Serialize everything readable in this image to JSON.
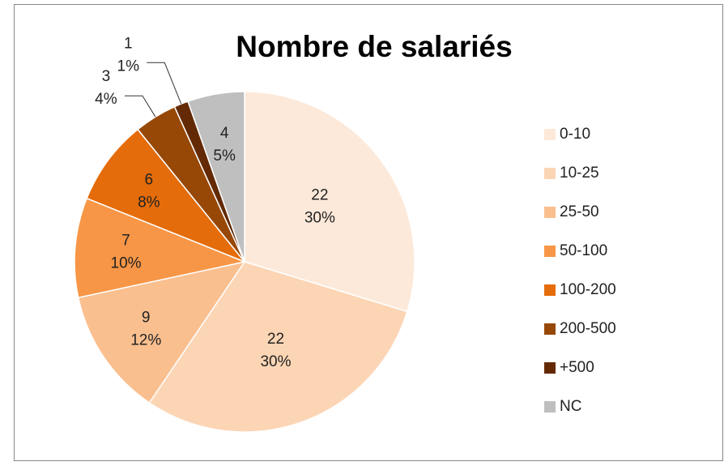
{
  "chart_data": {
    "type": "pie",
    "title": "Nombre de salariés",
    "categories": [
      "0-10",
      "10-25",
      "25-50",
      "50-100",
      "100-200",
      "200-500",
      "+500",
      "NC"
    ],
    "values": [
      22,
      22,
      9,
      7,
      6,
      3,
      1,
      4
    ],
    "percent_labels": [
      "30%",
      "30%",
      "12%",
      "10%",
      "8%",
      "4%",
      "1%",
      "5%"
    ],
    "colors": [
      "#fde9d9",
      "#fcd5b5",
      "#fabf8f",
      "#f79646",
      "#e46c0a",
      "#974806",
      "#632a05",
      "#bfbfbf"
    ],
    "legend": "right"
  }
}
